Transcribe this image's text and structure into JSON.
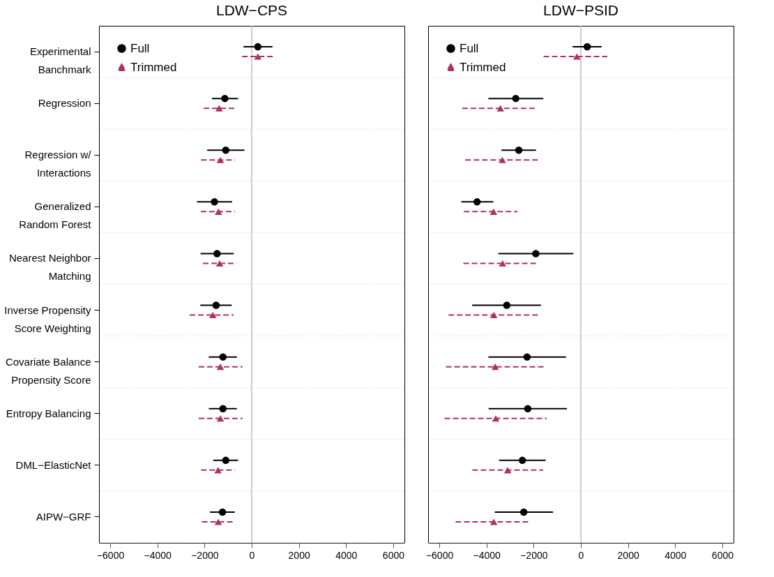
{
  "chart_data": [
    {
      "type": "scatter",
      "orientation": "horizontal",
      "title": "LDW−CPS",
      "categories": [
        "Experimental\nBanchmark",
        "Regression",
        "Regression w/\nInteractions",
        "Generalized\nRandom Forest",
        "Nearest Neighbor\nMatching",
        "Inverse Propensity\nScore Weighting",
        "Covariate Balance\nPropensity Score",
        "Entropy Balancing",
        "DML−ElasticNet",
        "AIPW−GRF"
      ],
      "series": [
        {
          "name": "Full",
          "color": "#000000",
          "marker": "circle",
          "line_style": "solid",
          "values": [
            260,
            -1140,
            -1100,
            -1580,
            -1470,
            -1510,
            -1220,
            -1220,
            -1100,
            -1240
          ],
          "errors": [
            [
              -350,
              880
            ],
            [
              -1690,
              -580
            ],
            [
              -1890,
              -310
            ],
            [
              -2320,
              -830
            ],
            [
              -2170,
              -760
            ],
            [
              -2180,
              -850
            ],
            [
              -1820,
              -630
            ],
            [
              -1820,
              -630
            ],
            [
              -1630,
              -580
            ],
            [
              -1770,
              -720
            ]
          ]
        },
        {
          "name": "Trimmed",
          "color": "#b03060",
          "marker": "triangle",
          "line_style": "dashed",
          "values": [
            260,
            -1380,
            -1330,
            -1410,
            -1360,
            -1650,
            -1330,
            -1330,
            -1430,
            -1420
          ],
          "errors": [
            [
              -410,
              940
            ],
            [
              -2040,
              -680
            ],
            [
              -2150,
              -710
            ],
            [
              -2160,
              -710
            ],
            [
              -2070,
              -640
            ],
            [
              -2630,
              -770
            ],
            [
              -2250,
              -390
            ],
            [
              -2250,
              -390
            ],
            [
              -2150,
              -710
            ],
            [
              -2110,
              -720
            ]
          ]
        }
      ],
      "xlim": [
        -6475,
        6475
      ],
      "xticks": [
        -6000,
        -4000,
        -2000,
        0,
        2000,
        4000,
        6000
      ],
      "grid": "y",
      "legend": "top left",
      "ref_lines": [
        {
          "axis": "x",
          "value": 0,
          "color": "#bebebe"
        }
      ]
    },
    {
      "type": "scatter",
      "orientation": "horizontal",
      "title": "LDW−PSID",
      "categories": [
        "Experimental\nBanchmark",
        "Regression",
        "Regression w/\nInteractions",
        "Generalized\nRandom Forest",
        "Nearest Neighbor\nMatching",
        "Inverse Propensity\nScore Weighting",
        "Covariate Balance\nPropensity Score",
        "Entropy Balancing",
        "DML−ElasticNet",
        "AIPW−GRF"
      ],
      "series": [
        {
          "name": "Full",
          "color": "#000000",
          "marker": "circle",
          "line_style": "solid",
          "values": [
            270,
            -2760,
            -2630,
            -4400,
            -1910,
            -3140,
            -2280,
            -2250,
            -2480,
            -2420
          ],
          "errors": [
            [
              -350,
              880
            ],
            [
              -3920,
              -1590
            ],
            [
              -3370,
              -1900
            ],
            [
              -5070,
              -3710
            ],
            [
              -3500,
              -320
            ],
            [
              -4610,
              -1690
            ],
            [
              -3920,
              -630
            ],
            [
              -3910,
              -590
            ],
            [
              -3470,
              -1490
            ],
            [
              -3650,
              -1180
            ]
          ]
        },
        {
          "name": "Trimmed",
          "color": "#b03060",
          "marker": "triangle",
          "line_style": "dashed",
          "values": [
            -170,
            -3410,
            -3330,
            -3700,
            -3320,
            -3690,
            -3630,
            -3610,
            -3100,
            -3690
          ],
          "errors": [
            [
              -1580,
              1120
            ],
            [
              -5030,
              -1930
            ],
            [
              -4900,
              -1770
            ],
            [
              -4960,
              -2690
            ],
            [
              -4980,
              -1870
            ],
            [
              -5610,
              -1790
            ],
            [
              -5720,
              -1530
            ],
            [
              -5780,
              -1450
            ],
            [
              -4600,
              -1600
            ],
            [
              -5310,
              -2210
            ]
          ]
        }
      ],
      "xlim": [
        -6475,
        6475
      ],
      "xticks": [
        -6000,
        -4000,
        -2000,
        0,
        2000,
        4000,
        6000
      ],
      "grid": "y",
      "legend": "top left",
      "tick_labels": "x",
      "ref_lines": [
        {
          "axis": "x",
          "value": 0,
          "color": "#bebebe"
        }
      ]
    }
  ]
}
